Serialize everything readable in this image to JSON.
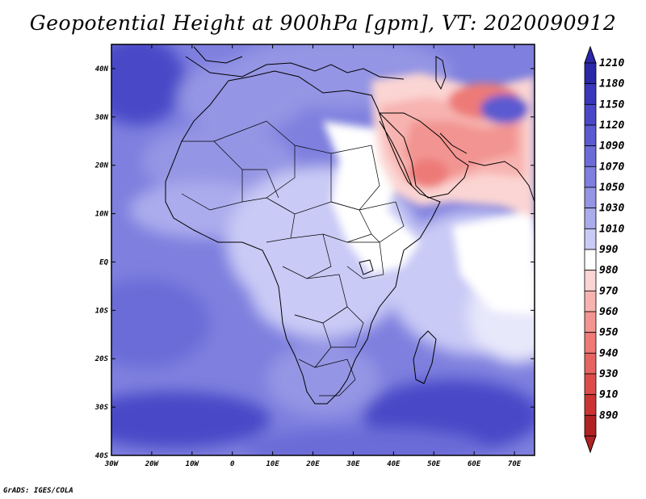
{
  "title": "Geopotential Height at 900hPa [gpm], VT: 2020090912",
  "credit": "GrADS: IGES/COLA",
  "map": {
    "lon_ticks": [
      "30W",
      "20W",
      "10W",
      "0",
      "10E",
      "20E",
      "30E",
      "40E",
      "50E",
      "60E",
      "70E"
    ],
    "lat_ticks": [
      "40N",
      "30N",
      "20N",
      "10N",
      "EQ",
      "10S",
      "20S",
      "30S",
      "40S"
    ],
    "lon_range": [
      -30,
      75
    ],
    "lat_range": [
      -40,
      45
    ],
    "variable": "Geopotential Height",
    "level": "900hPa",
    "units": "gpm",
    "valid_time": "2020090912"
  },
  "colorbar": {
    "labels": [
      "1210",
      "1180",
      "1150",
      "1120",
      "1090",
      "1070",
      "1050",
      "1030",
      "1010",
      "990",
      "980",
      "970",
      "960",
      "950",
      "940",
      "930",
      "910",
      "890"
    ],
    "colors": [
      "#2a27a8",
      "#3a37bc",
      "#4a48c8",
      "#5b5ad0",
      "#6c6cd8",
      "#7e7fde",
      "#9495e4",
      "#abaced",
      "#c9caf5",
      "#ffffff",
      "#fbd5d3",
      "#f7b3b0",
      "#f29491",
      "#ed7a77",
      "#e66361",
      "#de4c4a",
      "#cc3434",
      "#b12222"
    ],
    "top_arrow_color": "#2a27a8",
    "bottom_arrow_color": "#b12222"
  }
}
